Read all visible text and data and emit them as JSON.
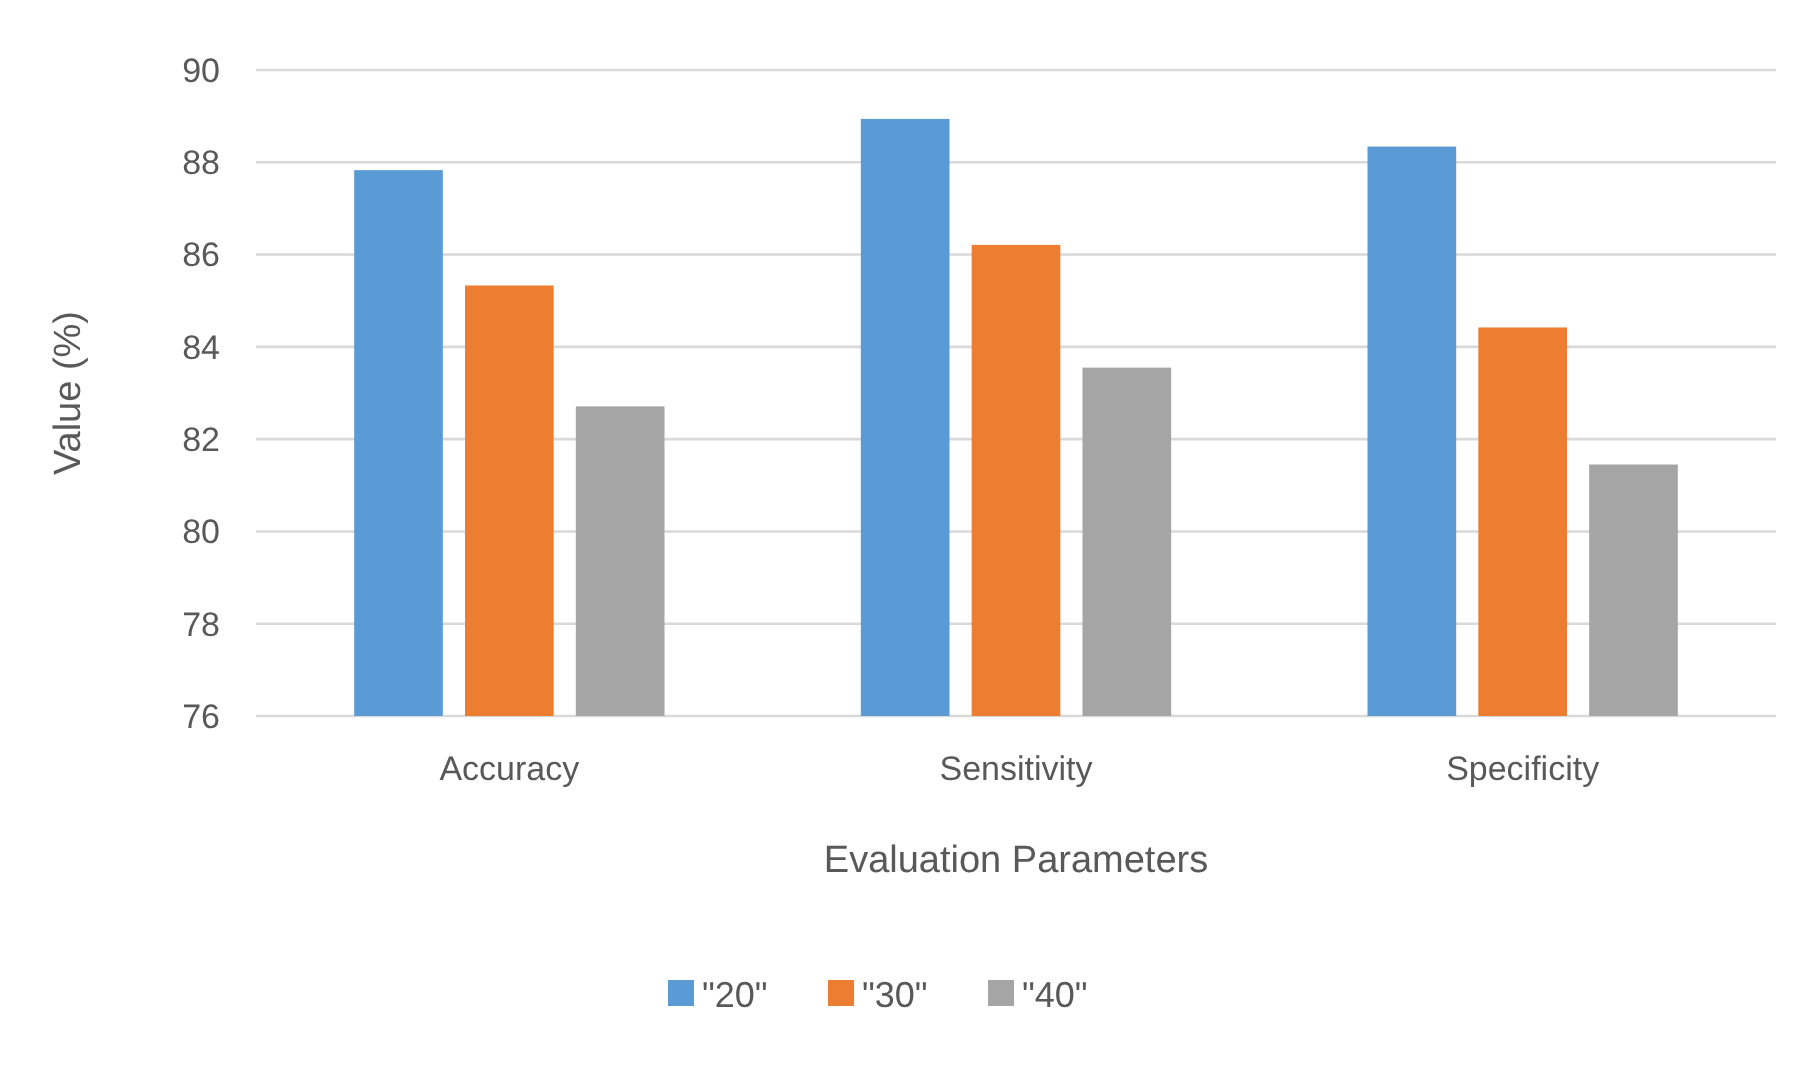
{
  "chart_data": {
    "type": "bar",
    "xlabel": "Evaluation Parameters",
    "ylabel": "Value (%)",
    "categories": [
      "Accuracy",
      "Sensitivity",
      "Specificity"
    ],
    "series": [
      {
        "name": "\"20\"",
        "color": "#5b9bd5",
        "values": [
          87.83,
          88.94,
          88.34
        ]
      },
      {
        "name": "\"30\"",
        "color": "#ed7d31",
        "values": [
          85.33,
          86.21,
          84.42
        ]
      },
      {
        "name": "\"40\"",
        "color": "#a5a5a5",
        "values": [
          82.71,
          83.55,
          81.45
        ]
      }
    ],
    "ylim": [
      76,
      90
    ],
    "yticks": [
      76,
      78,
      80,
      82,
      84,
      86,
      88,
      90
    ],
    "grid": "y",
    "legend": "bottom"
  }
}
